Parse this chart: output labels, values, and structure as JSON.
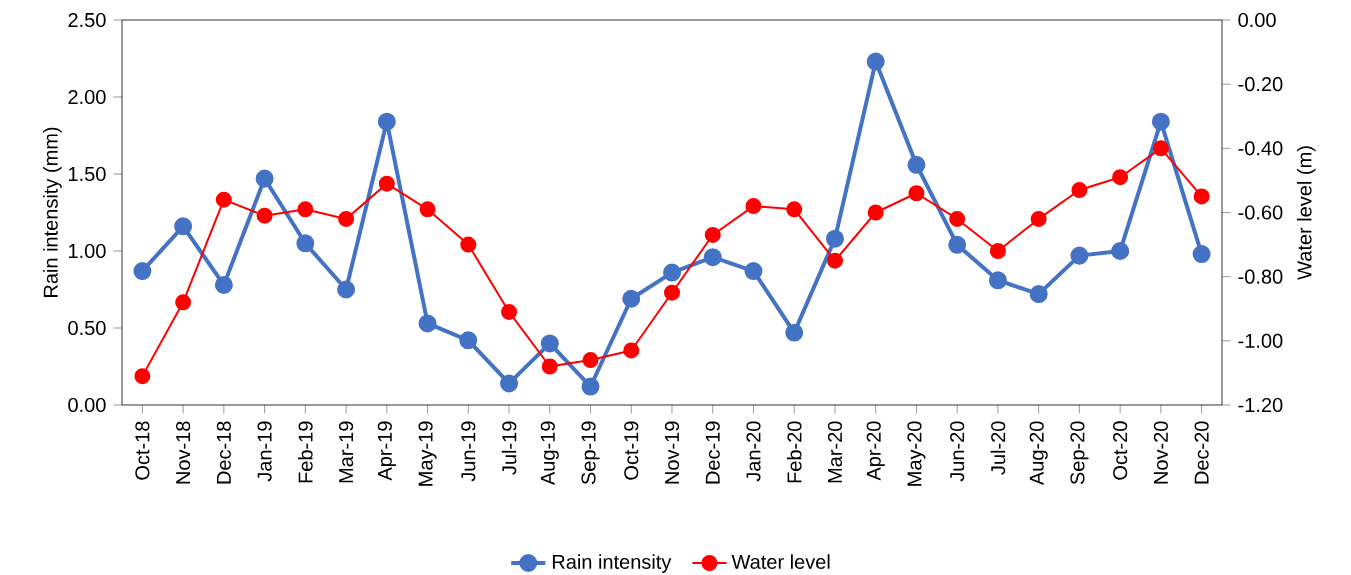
{
  "chart_data": {
    "type": "line",
    "ylabel": "Rain intensity (mm)",
    "y2label": "Water level (m)",
    "categories": [
      "Oct-18",
      "Nov-18",
      "Dec-18",
      "Jan-19",
      "Feb-19",
      "Mar-19",
      "Apr-19",
      "May-19",
      "Jun-19",
      "Jul-19",
      "Aug-19",
      "Sep-19",
      "Oct-19",
      "Nov-19",
      "Dec-19",
      "Jan-20",
      "Feb-20",
      "Mar-20",
      "Apr-20",
      "May-20",
      "Jun-20",
      "Jul-20",
      "Aug-20",
      "Sep-20",
      "Oct-20",
      "Nov-20",
      "Dec-20"
    ],
    "series": [
      {
        "name": "Rain intensity",
        "color": "#4472c4",
        "values": [
          0.87,
          1.16,
          0.78,
          1.47,
          1.05,
          0.75,
          1.84,
          0.53,
          0.42,
          0.14,
          0.4,
          0.12,
          0.69,
          0.86,
          0.96,
          0.87,
          0.47,
          1.08,
          2.23,
          1.56,
          1.04,
          0.81,
          0.72,
          0.97,
          1.0,
          1.84,
          0.98
        ]
      },
      {
        "name": "Water level",
        "color": "#ff0000",
        "axis": "y2",
        "values": [
          -1.11,
          -0.88,
          -0.56,
          -0.61,
          -0.59,
          -0.62,
          -0.51,
          -0.59,
          -0.7,
          -0.91,
          -1.08,
          -1.06,
          -1.03,
          -0.85,
          -0.67,
          -0.58,
          -0.59,
          -0.75,
          -0.6,
          -0.54,
          -0.62,
          -0.72,
          -0.62,
          -0.53,
          -0.49,
          -0.4,
          -0.55
        ]
      }
    ],
    "ylim": [
      0,
      2.5
    ],
    "yticks": [
      {
        "value": 0,
        "label": "0.00"
      },
      {
        "value": 0.5,
        "label": "0.50"
      },
      {
        "value": 1,
        "label": "1.00"
      },
      {
        "value": 1.5,
        "label": "1.50"
      },
      {
        "value": 2,
        "label": "2.00"
      },
      {
        "value": 2.5,
        "label": "2.50"
      }
    ],
    "y2lim": [
      -1.2,
      0
    ],
    "y2ticks": [
      {
        "value": -1.2,
        "label": "-1.20"
      },
      {
        "value": -1.0,
        "label": "-1.00"
      },
      {
        "value": -0.8,
        "label": "-0.80"
      },
      {
        "value": -0.6,
        "label": "-0.60"
      },
      {
        "value": -0.4,
        "label": "-0.40"
      },
      {
        "value": -0.2,
        "label": "-0.20"
      },
      {
        "value": 0,
        "label": "0.00"
      }
    ],
    "legend": "bottom",
    "marker": "circle",
    "grid": false
  }
}
